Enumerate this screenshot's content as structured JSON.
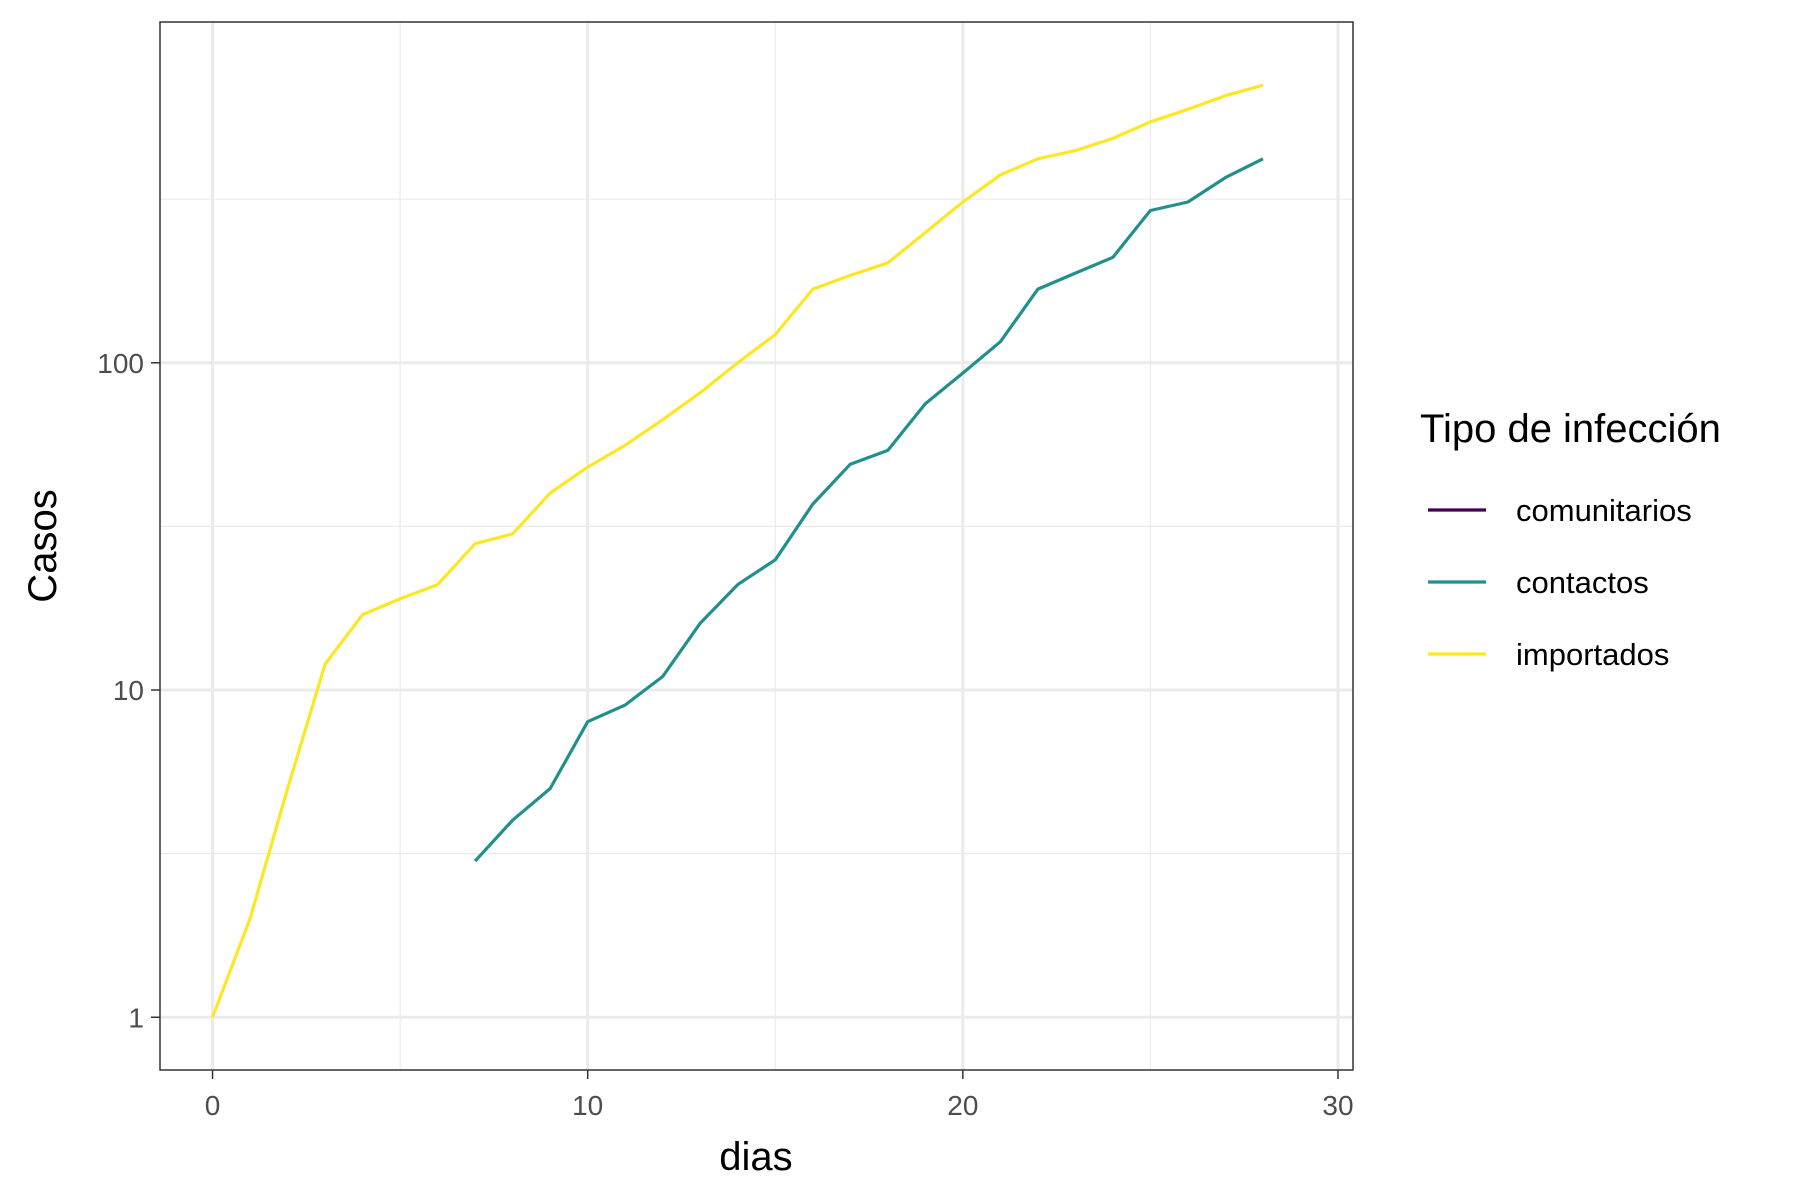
{
  "chart_data": {
    "type": "line",
    "title": "",
    "xlabel": "dias",
    "ylabel": "Casos",
    "x_scale": "linear",
    "y_scale": "log10",
    "xlim": [
      -1.4,
      30.4
    ],
    "ylim": [
      0.69,
      1100
    ],
    "x_ticks": [
      0,
      10,
      20,
      30
    ],
    "y_ticks": [
      1,
      10,
      100
    ],
    "x_tick_labels": [
      "0",
      "10",
      "20",
      "30"
    ],
    "y_tick_labels": [
      "1",
      "10",
      "100"
    ],
    "grid": true,
    "legend": {
      "title": "Tipo de infección",
      "placement": "right"
    },
    "series": [
      {
        "name": "comunitarios",
        "color": "#440154",
        "points": []
      },
      {
        "name": "contactos",
        "color": "#21908C",
        "points": [
          [
            7,
            3
          ],
          [
            8,
            4
          ],
          [
            9,
            5
          ],
          [
            10,
            8
          ],
          [
            11,
            9
          ],
          [
            12,
            11
          ],
          [
            13,
            16
          ],
          [
            14,
            21
          ],
          [
            15,
            25
          ],
          [
            16,
            37
          ],
          [
            17,
            49
          ],
          [
            18,
            54
          ],
          [
            19,
            75
          ],
          [
            20,
            93
          ],
          [
            21,
            116
          ],
          [
            22,
            168
          ],
          [
            23,
            188
          ],
          [
            24,
            210
          ],
          [
            25,
            292
          ],
          [
            26,
            310
          ],
          [
            27,
            368
          ],
          [
            28,
            420
          ]
        ]
      },
      {
        "name": "importados",
        "color": "#FDE725",
        "points": [
          [
            0,
            1
          ],
          [
            1,
            2
          ],
          [
            2,
            5
          ],
          [
            3,
            12
          ],
          [
            4,
            17
          ],
          [
            5,
            19
          ],
          [
            6,
            21
          ],
          [
            7,
            28
          ],
          [
            8,
            30
          ],
          [
            9,
            40
          ],
          [
            10,
            48
          ],
          [
            11,
            56
          ],
          [
            12,
            67
          ],
          [
            13,
            81
          ],
          [
            14,
            100
          ],
          [
            15,
            122
          ],
          [
            16,
            168
          ],
          [
            17,
            185
          ],
          [
            18,
            202
          ],
          [
            19,
            250
          ],
          [
            20,
            310
          ],
          [
            21,
            375
          ],
          [
            22,
            420
          ],
          [
            23,
            445
          ],
          [
            24,
            485
          ],
          [
            25,
            545
          ],
          [
            26,
            595
          ],
          [
            27,
            655
          ],
          [
            28,
            705
          ]
        ]
      }
    ]
  }
}
